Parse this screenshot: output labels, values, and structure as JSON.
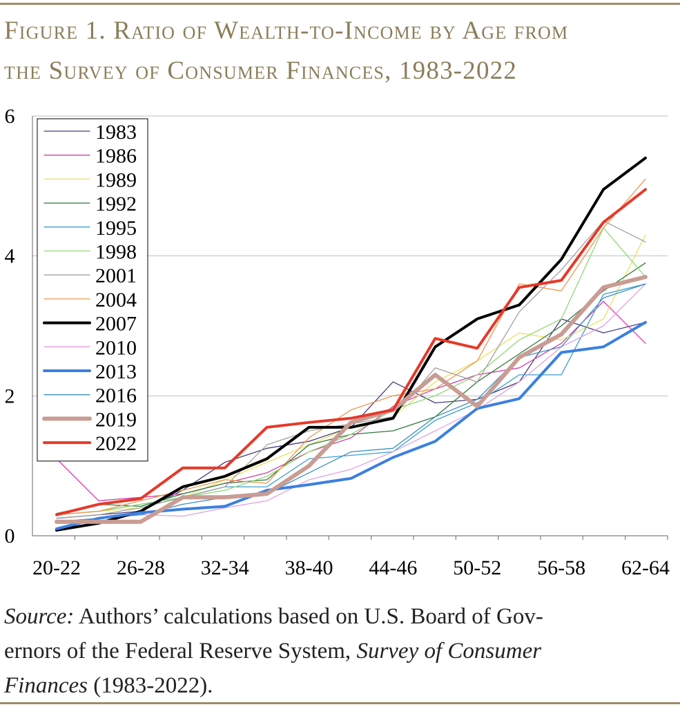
{
  "figure": {
    "title_line1": "Figure 1. Ratio of Wealth-to-Income by Age from",
    "title_line2": "the Survey of Consumer Finances, 1983-2022"
  },
  "source": {
    "label": "Source:",
    "line1_text": "Authors’ calculations based on U.S. Board of Gov-",
    "line2_text": "ernors of the Federal Reserve System,",
    "line2_italic": "Survey of Consumer",
    "line3_italic": "Finances",
    "line3_text": "(1983-2022)."
  },
  "colors": {
    "rule": "#9c8c66",
    "title": "#8b7d5a",
    "gridline": "#bfbfbf"
  },
  "chart_data": {
    "type": "line",
    "title": "",
    "xlabel": "",
    "ylabel": "",
    "ylim": [
      0,
      6
    ],
    "yticks": [
      0,
      2,
      4,
      6
    ],
    "grid": true,
    "legend_position": "top-left",
    "categories": [
      "20-22",
      "23-25",
      "26-28",
      "29-31",
      "32-34",
      "35-37",
      "38-40",
      "41-43",
      "44-46",
      "47-49",
      "50-52",
      "53-55",
      "56-58",
      "59-61",
      "62-64"
    ],
    "visible_tick_labels": [
      "20-22",
      "26-28",
      "32-34",
      "38-40",
      "44-46",
      "50-52",
      "56-58",
      "62-64"
    ],
    "series": [
      {
        "name": "1983",
        "color": "#4a3b7a",
        "width": 1.3,
        "values": [
          0.25,
          0.3,
          0.35,
          0.65,
          1.05,
          1.25,
          1.35,
          1.55,
          2.2,
          1.9,
          1.95,
          2.2,
          3.1,
          2.9,
          3.05
        ]
      },
      {
        "name": "1986",
        "color": "#d040a8",
        "width": 1.3,
        "values": [
          1.1,
          0.5,
          0.55,
          0.6,
          0.75,
          0.9,
          1.2,
          1.4,
          1.85,
          2.1,
          2.3,
          2.4,
          2.75,
          3.35,
          2.75
        ]
      },
      {
        "name": "1989",
        "color": "#e8e060",
        "width": 1.3,
        "values": [
          0.3,
          0.35,
          0.4,
          0.55,
          0.8,
          1.05,
          1.3,
          1.55,
          1.7,
          2.2,
          2.5,
          2.9,
          2.8,
          3.1,
          4.3
        ]
      },
      {
        "name": "1992",
        "color": "#2e7a3a",
        "width": 1.3,
        "values": [
          0.32,
          0.45,
          0.42,
          0.6,
          0.75,
          0.8,
          1.3,
          1.45,
          1.5,
          1.7,
          2.2,
          2.6,
          3.0,
          3.5,
          3.9
        ]
      },
      {
        "name": "1995",
        "color": "#3a9fd0",
        "width": 1.3,
        "values": [
          0.3,
          0.35,
          0.45,
          0.55,
          0.7,
          0.7,
          1.1,
          1.15,
          1.2,
          1.65,
          1.9,
          2.3,
          2.3,
          3.45,
          3.6
        ]
      },
      {
        "name": "1998",
        "color": "#90d878",
        "width": 1.3,
        "values": [
          0.3,
          0.35,
          0.45,
          0.55,
          0.65,
          0.85,
          1.2,
          1.45,
          1.8,
          2.0,
          2.3,
          2.8,
          3.1,
          4.4,
          3.7
        ]
      },
      {
        "name": "2001",
        "color": "#a0a0a0",
        "width": 1.3,
        "values": [
          0.25,
          0.3,
          0.4,
          0.55,
          0.7,
          1.3,
          1.5,
          1.6,
          1.7,
          2.4,
          2.2,
          3.2,
          3.8,
          4.5,
          4.2
        ]
      },
      {
        "name": "2004",
        "color": "#e89850",
        "width": 1.3,
        "values": [
          0.3,
          0.35,
          0.5,
          0.65,
          0.8,
          0.75,
          1.4,
          1.8,
          2.0,
          2.1,
          2.5,
          3.6,
          3.5,
          4.4,
          5.1
        ]
      },
      {
        "name": "2007",
        "color": "#000000",
        "width": 4,
        "values": [
          0.08,
          0.18,
          0.35,
          0.7,
          0.85,
          1.1,
          1.55,
          1.55,
          1.68,
          2.7,
          3.1,
          3.3,
          3.95,
          4.95,
          5.4
        ]
      },
      {
        "name": "2010",
        "color": "#e0a0e0",
        "width": 1.3,
        "values": [
          0.2,
          0.25,
          0.3,
          0.28,
          0.4,
          0.5,
          0.8,
          0.95,
          1.2,
          1.5,
          1.8,
          2.2,
          2.7,
          3.0,
          3.6
        ]
      },
      {
        "name": "2013",
        "color": "#3a80e0",
        "width": 4,
        "values": [
          0.1,
          0.25,
          0.33,
          0.38,
          0.42,
          0.65,
          0.73,
          0.82,
          1.12,
          1.35,
          1.82,
          1.96,
          2.62,
          2.7,
          3.05
        ]
      },
      {
        "name": "2016",
        "color": "#3a90c0",
        "width": 1.3,
        "values": [
          0.2,
          0.25,
          0.3,
          0.45,
          0.55,
          0.6,
          0.9,
          1.2,
          1.25,
          1.7,
          1.95,
          2.55,
          2.7,
          3.4,
          3.6
        ]
      },
      {
        "name": "2019",
        "color": "#c99c94",
        "width": 6,
        "values": [
          0.2,
          0.2,
          0.2,
          0.55,
          0.55,
          0.6,
          1.0,
          1.62,
          1.8,
          2.3,
          1.85,
          2.55,
          2.88,
          3.55,
          3.7
        ]
      },
      {
        "name": "2022",
        "color": "#e83828",
        "width": 4,
        "values": [
          0.3,
          0.45,
          0.53,
          0.97,
          0.97,
          1.55,
          1.62,
          1.68,
          1.8,
          2.82,
          2.68,
          3.55,
          3.65,
          4.48,
          4.95
        ]
      }
    ]
  }
}
